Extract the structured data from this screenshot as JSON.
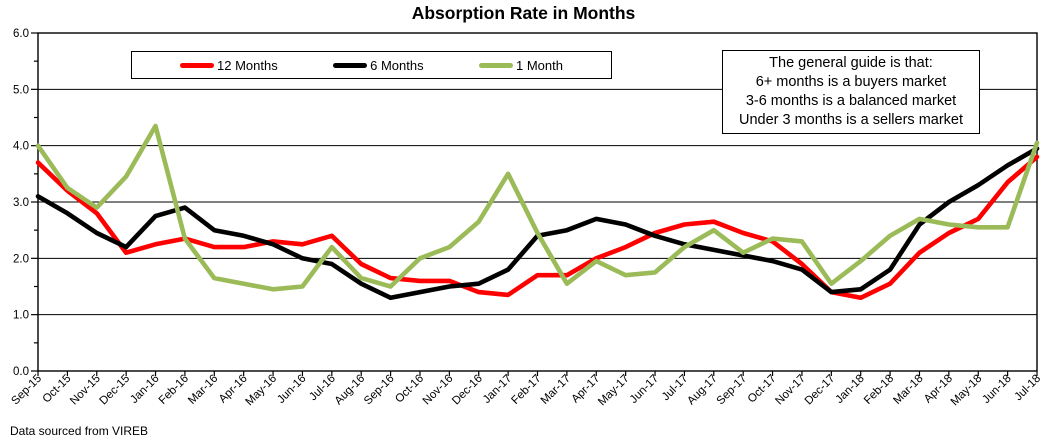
{
  "title": "Absorption Rate in Months",
  "source_note": "Data sourced from VIREB",
  "guide_box": {
    "lines": [
      "The general guide is that:",
      "6+ months is a buyers market",
      "3-6 months is a balanced market",
      "Under 3 months is a sellers market"
    ]
  },
  "legend": [
    {
      "label": "12 Months",
      "color": "#ff0000"
    },
    {
      "label": "6 Months",
      "color": "#000000"
    },
    {
      "label": "1 Month",
      "color": "#9bbb59"
    }
  ],
  "chart_data": {
    "type": "line",
    "title": "Absorption Rate in Months",
    "xlabel": "",
    "ylabel": "",
    "ylim": [
      0,
      6
    ],
    "ytick_step": 1,
    "ytick_labels": [
      "0.0",
      "1.0",
      "2.0",
      "3.0",
      "4.0",
      "5.0",
      "6.0"
    ],
    "grid": true,
    "legend_position": "top-inside",
    "x": [
      "Sep-15",
      "Oct-15",
      "Nov-15",
      "Dec-15",
      "Jan-16",
      "Feb-16",
      "Mar-16",
      "Apr-16",
      "May-16",
      "Jun-16",
      "Jul-16",
      "Aug-16",
      "Sep-16",
      "Oct-16",
      "Nov-16",
      "Dec-16",
      "Jan-17",
      "Feb-17",
      "Mar-17",
      "Apr-17",
      "May-17",
      "Jun-17",
      "Jul-17",
      "Aug-17",
      "Sep-17",
      "Oct-17",
      "Nov-17",
      "Dec-17",
      "Jan-18",
      "Feb-18",
      "Mar-18",
      "Apr-18",
      "May-18",
      "Jun-18",
      "Jul-18"
    ],
    "series": [
      {
        "name": "12 Months",
        "color": "#ff0000",
        "values": [
          3.7,
          3.2,
          2.8,
          2.1,
          2.25,
          2.35,
          2.2,
          2.2,
          2.3,
          2.25,
          2.4,
          1.9,
          1.65,
          1.6,
          1.6,
          1.4,
          1.35,
          1.7,
          1.7,
          2.0,
          2.2,
          2.45,
          2.6,
          2.65,
          2.45,
          2.3,
          1.9,
          1.4,
          1.3,
          1.55,
          2.1,
          2.45,
          2.7,
          3.35,
          3.8
        ]
      },
      {
        "name": "6 Months",
        "color": "#000000",
        "values": [
          3.1,
          2.8,
          2.45,
          2.2,
          2.75,
          2.9,
          2.5,
          2.4,
          2.25,
          2.0,
          1.9,
          1.55,
          1.3,
          1.4,
          1.5,
          1.55,
          1.8,
          2.4,
          2.5,
          2.7,
          2.6,
          2.4,
          2.25,
          2.15,
          2.05,
          1.95,
          1.8,
          1.4,
          1.45,
          1.8,
          2.6,
          3.0,
          3.3,
          3.65,
          3.95
        ]
      },
      {
        "name": "1 Month",
        "color": "#9bbb59",
        "values": [
          4.0,
          3.25,
          2.9,
          3.45,
          4.35,
          2.35,
          1.65,
          1.55,
          1.45,
          1.5,
          2.2,
          1.65,
          1.5,
          2.0,
          2.2,
          2.65,
          3.5,
          2.45,
          1.55,
          1.95,
          1.7,
          1.75,
          2.2,
          2.5,
          2.1,
          2.35,
          2.3,
          1.55,
          1.95,
          2.4,
          2.7,
          2.6,
          2.55,
          2.55,
          4.05
        ]
      }
    ]
  }
}
